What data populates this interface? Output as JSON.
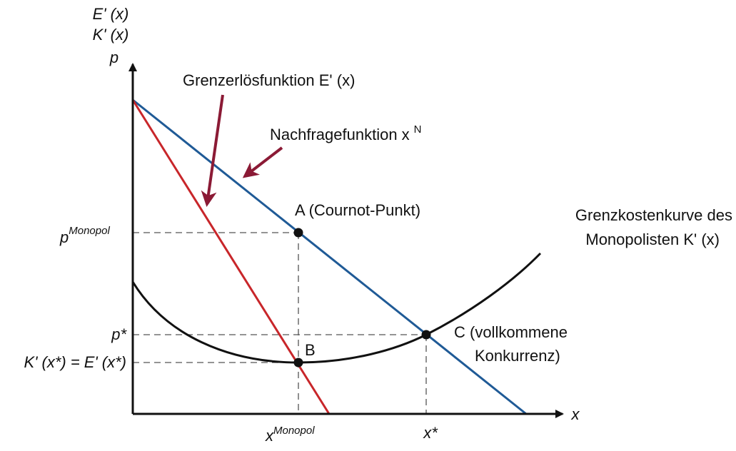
{
  "axes": {
    "y_label_top1": "E' (x)",
    "y_label_top2": "K' (x)",
    "y_label_p": "p",
    "x_label": "x"
  },
  "ticks": {
    "p_monopol_base": "p",
    "p_monopol_sup": "Monopol",
    "p_star": "p*",
    "k_eq": "K' (x*) = E' (x*)",
    "x_monopol_base": "x",
    "x_monopol_sup": "Monopol",
    "x_star": "x*"
  },
  "curves": {
    "grenzerloes_label": "Grenzerlösfunktion E' (x)",
    "nachfrage_label": "Nachfragefunktion x",
    "nachfrage_sup": "N",
    "grenzkosten_label_1": "Grenzkostenkurve des",
    "grenzkosten_label_2": "Monopolisten K' (x)"
  },
  "points": {
    "a_label": "A (Cournot-Punkt)",
    "b_label": "B",
    "c_label_1": "C (vollkommene",
    "c_label_2": "Konkurrenz)"
  },
  "colors": {
    "demand": "#1f5a96",
    "marginal_revenue": "#c8262a",
    "marginal_cost": "#111111",
    "arrow": "#8b1a35",
    "guide": "#555555"
  }
}
